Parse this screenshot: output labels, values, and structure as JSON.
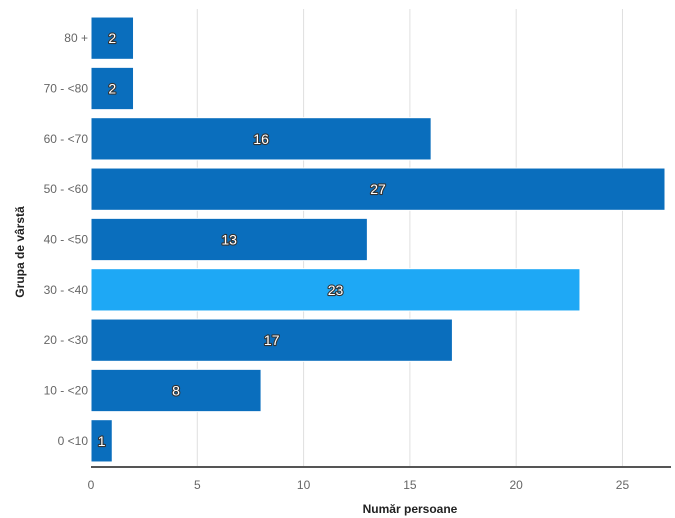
{
  "chart_data": {
    "type": "bar",
    "orientation": "horizontal",
    "categories": [
      "80 +",
      "70 - <80",
      "60 - <70",
      "50 - <60",
      "40 - <50",
      "30 - <40",
      "20 - <30",
      "10 - <20",
      "0 <10"
    ],
    "values": [
      2,
      2,
      16,
      27,
      13,
      23,
      17,
      8,
      1
    ],
    "data_labels": [
      "2",
      "2",
      "16",
      "27",
      "13",
      "23",
      "17",
      "8",
      "1"
    ],
    "highlight_index": 5,
    "xlabel": "Număr persoane",
    "ylabel": "Grupa de vârstă",
    "xlim": [
      0,
      27
    ],
    "xticks": [
      0,
      5,
      10,
      15,
      20,
      25
    ],
    "xtick_labels": [
      "0",
      "5",
      "10",
      "15",
      "20",
      "25"
    ],
    "grid": "vertical",
    "colors": {
      "bar": "#0a6ebd",
      "highlight": "#1ea8f5",
      "grid": "#e0e0e0",
      "axis": "#555555"
    }
  }
}
